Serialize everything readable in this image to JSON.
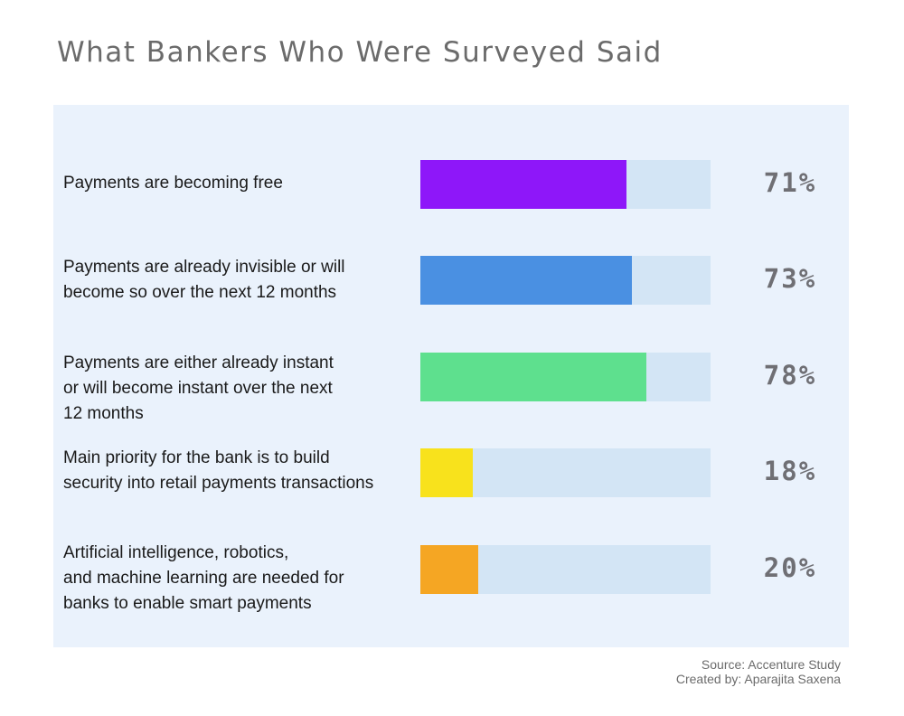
{
  "chart_data": {
    "type": "bar",
    "title": "What Bankers Who Were Surveyed Said",
    "xlim": [
      0,
      100
    ],
    "categories": [
      "Payments are becoming free",
      "Payments are already invisible or will\nbecome so over the next 12 months",
      "Payments are either already instant\nor will become instant over the next\n12 months",
      "Main priority for the bank is to build\nsecurity into retail payments transactions",
      "Artificial intelligence, robotics,\nand machine learning are needed for\nbanks to enable smart payments"
    ],
    "values": [
      71,
      73,
      78,
      18,
      20
    ],
    "value_labels": [
      "71%",
      "73%",
      "78%",
      "18%",
      "20%"
    ],
    "colors": [
      "#8e17f9",
      "#4a90e2",
      "#5ee08e",
      "#f8e21c",
      "#f5a623"
    ],
    "track_color": "#d3e5f5",
    "background_color": "#eaf2fc"
  },
  "footer": {
    "source": "Source: Accenture Study",
    "credit": "Created by: Aparajita Saxena"
  }
}
